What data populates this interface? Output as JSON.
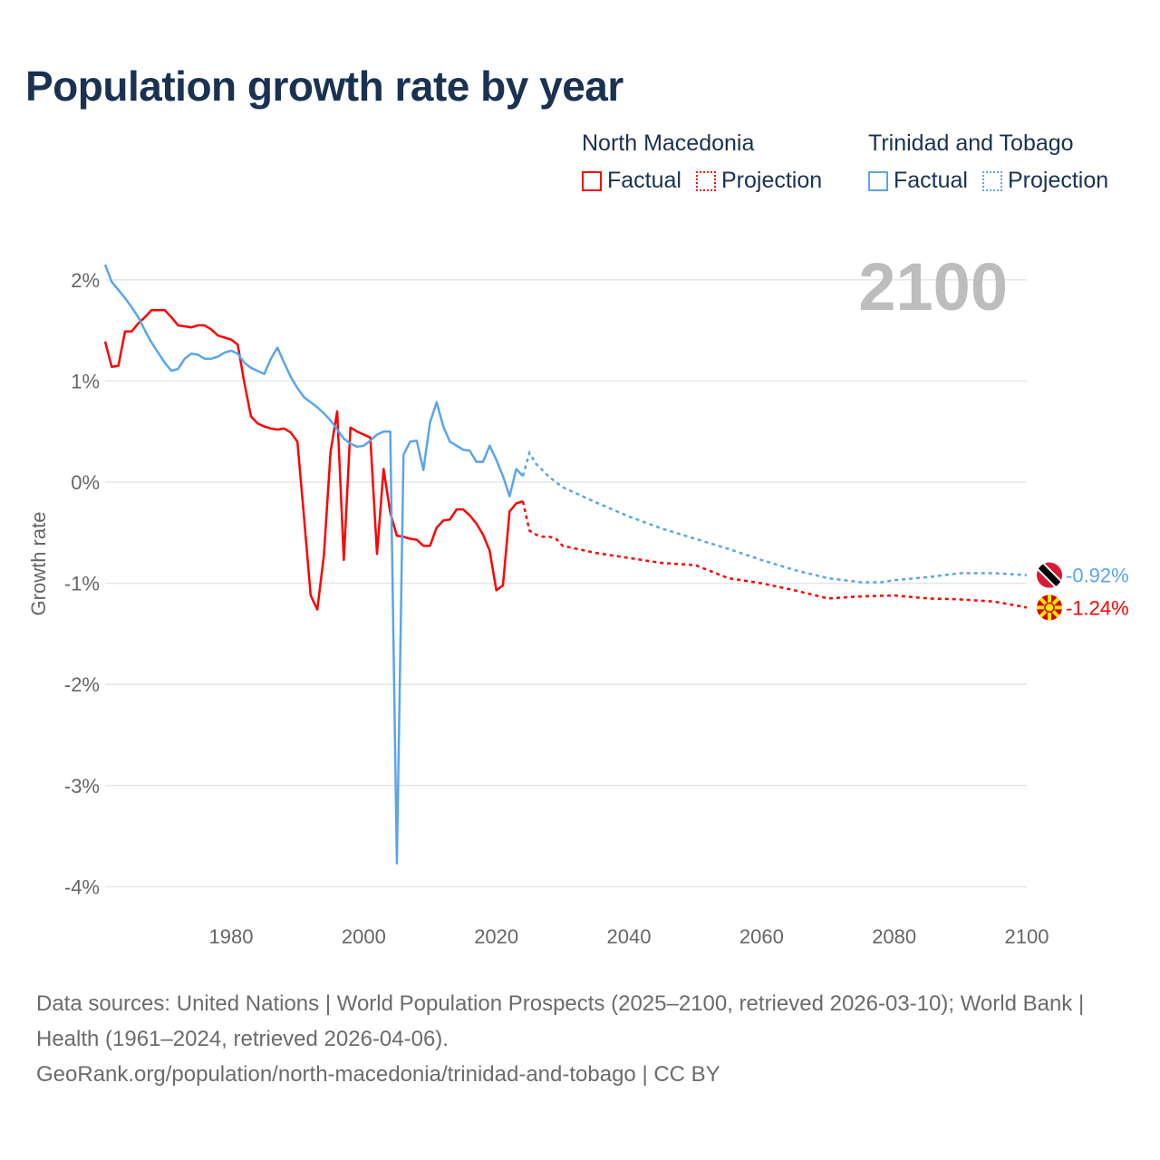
{
  "chart_data": {
    "type": "line",
    "title": "Population growth rate by year",
    "ylabel": "Growth rate",
    "xlim": [
      1961,
      2100
    ],
    "ylim": [
      -4.2,
      2.3
    ],
    "x_ticks": [
      1980,
      2000,
      2020,
      2040,
      2060,
      2080,
      2100
    ],
    "x_tick_labels": [
      "1980",
      "2000",
      "2020",
      "2040",
      "2060",
      "2080",
      "2100"
    ],
    "y_ticks": [
      2,
      1,
      0,
      -1,
      -2,
      -3,
      -4
    ],
    "y_tick_labels": [
      "2%",
      "1%",
      "0%",
      "-1%",
      "-2%",
      "-3%",
      "-4%"
    ],
    "year_label": "2100",
    "grid": true,
    "legend_position": "top-right",
    "legend": [
      {
        "country": "North Macedonia",
        "factual": "Factual",
        "projection": "Projection",
        "color": "#ff0000"
      },
      {
        "country": "Trinidad and Tobago",
        "factual": "Factual",
        "projection": "Projection",
        "color": "#5aa5ea"
      }
    ],
    "series": [
      {
        "name": "North Macedonia",
        "color": "#ff0000",
        "end_label": "-1.24%",
        "flag": "north-macedonia-flag",
        "factual": {
          "x": [
            1961,
            1962,
            1963,
            1964,
            1965,
            1966,
            1967,
            1968,
            1969,
            1970,
            1971,
            1972,
            1973,
            1974,
            1975,
            1976,
            1977,
            1978,
            1979,
            1980,
            1981,
            1982,
            1983,
            1984,
            1985,
            1986,
            1987,
            1988,
            1989,
            1990,
            1991,
            1992,
            1993,
            1994,
            1995,
            1996,
            1997,
            1998,
            1999,
            2000,
            2001,
            2002,
            2003,
            2004,
            2005,
            2006,
            2007,
            2008,
            2009,
            2010,
            2011,
            2012,
            2013,
            2014,
            2015,
            2016,
            2017,
            2018,
            2019,
            2020,
            2021,
            2022,
            2023,
            2024
          ],
          "y": [
            1.39,
            1.14,
            1.15,
            1.49,
            1.49,
            1.57,
            1.63,
            1.7,
            1.7,
            1.7,
            1.63,
            1.55,
            1.54,
            1.53,
            1.55,
            1.55,
            1.51,
            1.45,
            1.43,
            1.41,
            1.36,
            0.98,
            0.65,
            0.58,
            0.55,
            0.53,
            0.52,
            0.53,
            0.49,
            0.4,
            -0.35,
            -1.12,
            -1.26,
            -0.72,
            0.3,
            0.7,
            -0.77,
            0.54,
            0.5,
            0.47,
            0.44,
            -0.71,
            0.13,
            -0.3,
            -0.53,
            -0.54,
            -0.56,
            -0.57,
            -0.63,
            -0.63,
            -0.45,
            -0.38,
            -0.37,
            -0.27,
            -0.27,
            -0.33,
            -0.41,
            -0.52,
            -0.68,
            -1.07,
            -1.02,
            -0.29,
            -0.21,
            -0.19
          ]
        },
        "projection": {
          "x": [
            2024,
            2025,
            2026,
            2027,
            2028,
            2029,
            2030,
            2035,
            2040,
            2045,
            2050,
            2055,
            2060,
            2065,
            2070,
            2075,
            2080,
            2085,
            2090,
            2095,
            2100
          ],
          "y": [
            -0.19,
            -0.48,
            -0.52,
            -0.54,
            -0.54,
            -0.56,
            -0.63,
            -0.7,
            -0.75,
            -0.8,
            -0.82,
            -0.95,
            -1.0,
            -1.07,
            -1.15,
            -1.13,
            -1.12,
            -1.15,
            -1.16,
            -1.18,
            -1.24
          ]
        }
      },
      {
        "name": "Trinidad and Tobago",
        "color": "#5aa5ea",
        "end_label": "-0.92%",
        "flag": "trinidad-and-tobago-flag",
        "factual": {
          "x": [
            1961,
            1962,
            1963,
            1964,
            1965,
            1966,
            1967,
            1968,
            1969,
            1970,
            1971,
            1972,
            1973,
            1974,
            1975,
            1976,
            1977,
            1978,
            1979,
            1980,
            1981,
            1982,
            1983,
            1984,
            1985,
            1986,
            1987,
            1988,
            1989,
            1990,
            1991,
            1992,
            1993,
            1994,
            1995,
            1996,
            1997,
            1998,
            1999,
            2000,
            2001,
            2002,
            2003,
            2004,
            2005,
            2006,
            2007,
            2008,
            2009,
            2010,
            2011,
            2012,
            2013,
            2014,
            2015,
            2016,
            2017,
            2018,
            2019,
            2020,
            2021,
            2022,
            2023,
            2024
          ],
          "y": [
            2.15,
            1.98,
            1.9,
            1.82,
            1.73,
            1.63,
            1.5,
            1.38,
            1.28,
            1.18,
            1.1,
            1.12,
            1.22,
            1.27,
            1.26,
            1.22,
            1.22,
            1.24,
            1.28,
            1.3,
            1.27,
            1.18,
            1.13,
            1.1,
            1.07,
            1.22,
            1.33,
            1.18,
            1.04,
            0.93,
            0.84,
            0.79,
            0.74,
            0.68,
            0.61,
            0.52,
            0.43,
            0.38,
            0.35,
            0.36,
            0.41,
            0.47,
            0.5,
            0.5,
            -3.77,
            0.27,
            0.4,
            0.41,
            0.12,
            0.59,
            0.79,
            0.55,
            0.4,
            0.36,
            0.32,
            0.31,
            0.2,
            0.2,
            0.36,
            0.22,
            0.06,
            -0.14,
            0.13,
            0.06
          ]
        },
        "projection": {
          "x": [
            2024,
            2025,
            2026,
            2028,
            2030,
            2035,
            2040,
            2045,
            2050,
            2055,
            2060,
            2065,
            2070,
            2075,
            2078,
            2080,
            2085,
            2090,
            2095,
            2100
          ],
          "y": [
            0.06,
            0.29,
            0.18,
            0.05,
            -0.05,
            -0.2,
            -0.34,
            -0.46,
            -0.56,
            -0.66,
            -0.77,
            -0.87,
            -0.95,
            -0.99,
            -0.99,
            -0.97,
            -0.94,
            -0.9,
            -0.9,
            -0.92
          ]
        }
      }
    ]
  },
  "footer": {
    "sources": "Data sources: United Nations | World Population Prospects (2025–2100, retrieved 2026-03-10); World Bank | Health (1961–2024, retrieved 2026-04-06).",
    "link": "GeoRank.org/population/north-macedonia/trinidad-and-tobago | CC BY"
  }
}
